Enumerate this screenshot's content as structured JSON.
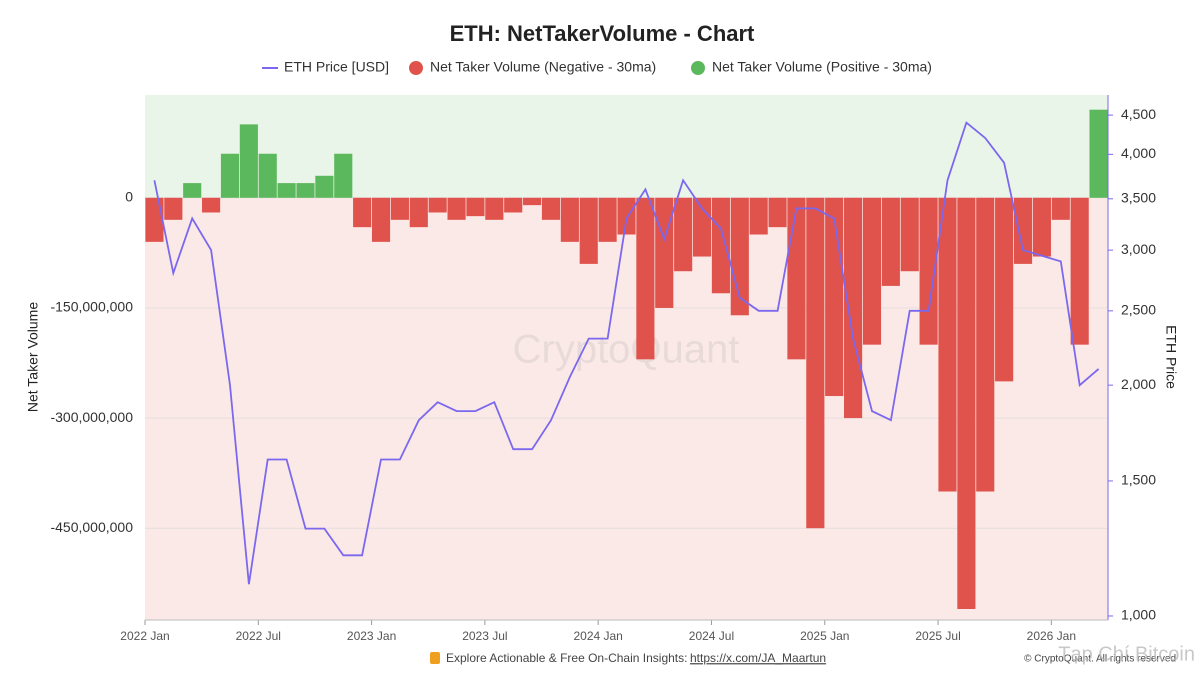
{
  "chart_data": {
    "type": "bar-line",
    "title": "ETH: NetTakerVolume - Chart",
    "y_label": "Net Taker Volume",
    "y2_label": "ETH Price",
    "watermark": "CryptoQuant",
    "footer": "Explore Actionable & Free On-Chain Insights:",
    "footer_link": "https://x.com/JA_Maartun",
    "copyright": "© CryptoQuant. All rights reserved",
    "source_watermark": "Tạp Chí Bitcoin",
    "x": [
      "2022-01",
      "2022-02",
      "2022-03",
      "2022-04",
      "2022-05",
      "2022-06",
      "2022-07",
      "2022-08",
      "2022-09",
      "2022-10",
      "2022-11",
      "2022-12",
      "2023-01",
      "2023-02",
      "2023-03",
      "2023-04",
      "2023-05",
      "2023-06",
      "2023-07",
      "2023-08",
      "2023-09",
      "2023-10",
      "2023-11",
      "2023-12",
      "2024-01",
      "2024-02",
      "2024-03",
      "2024-04",
      "2024-05",
      "2024-06",
      "2024-07",
      "2024-08",
      "2024-09",
      "2024-10",
      "2024-11",
      "2024-12",
      "2025-01",
      "2025-02",
      "2025-03",
      "2025-04",
      "2025-05",
      "2025-06",
      "2025-07",
      "2025-08",
      "2025-09",
      "2025-10",
      "2025-11",
      "2025-12",
      "2026-01",
      "2026-02",
      "2026-03"
    ],
    "xlim": [
      "2022-01",
      "2026-04"
    ],
    "xticks": [
      {
        "value": "2022-01",
        "label": "2022 Jan"
      },
      {
        "value": "2022-07",
        "label": "2022 Jul"
      },
      {
        "value": "2023-01",
        "label": "2023 Jan"
      },
      {
        "value": "2023-07",
        "label": "2023 Jul"
      },
      {
        "value": "2024-01",
        "label": "2024 Jan"
      },
      {
        "value": "2024-07",
        "label": "2024 Jul"
      },
      {
        "value": "2025-01",
        "label": "2025 Jan"
      },
      {
        "value": "2025-07",
        "label": "2025 Jul"
      },
      {
        "value": "2026-01",
        "label": "2026 Jan"
      }
    ],
    "series": [
      {
        "name": "Net Taker Volume (Negative - 30ma)",
        "color": "#e0524c",
        "values": [
          -60000000,
          -30000000,
          null,
          -20000000,
          null,
          null,
          null,
          null,
          null,
          null,
          null,
          -40000000,
          -60000000,
          -30000000,
          -40000000,
          -20000000,
          -30000000,
          -25000000,
          -30000000,
          -20000000,
          -10000000,
          -30000000,
          -60000000,
          -90000000,
          -60000000,
          -50000000,
          -220000000,
          -150000000,
          -100000000,
          -80000000,
          -130000000,
          -160000000,
          -50000000,
          -40000000,
          -220000000,
          -450000000,
          -270000000,
          -300000000,
          -200000000,
          -120000000,
          -100000000,
          -200000000,
          -400000000,
          -560000000,
          -400000000,
          -250000000,
          -90000000,
          -80000000,
          -30000000,
          -200000000,
          null
        ]
      },
      {
        "name": "Net Taker Volume (Positive - 30ma)",
        "color": "#5cb85c",
        "values": [
          null,
          null,
          20000000,
          null,
          60000000,
          100000000,
          60000000,
          20000000,
          20000000,
          30000000,
          60000000,
          null,
          null,
          null,
          null,
          null,
          null,
          null,
          null,
          null,
          null,
          null,
          null,
          null,
          null,
          null,
          null,
          null,
          null,
          null,
          null,
          null,
          null,
          null,
          null,
          null,
          null,
          null,
          null,
          null,
          null,
          null,
          null,
          null,
          null,
          null,
          null,
          null,
          null,
          null,
          120000000
        ]
      },
      {
        "name": "ETH Price [USD]",
        "color": "#7b68ee",
        "axis": "y2",
        "values": [
          3700,
          2800,
          3300,
          3000,
          2000,
          1100,
          1600,
          1600,
          1300,
          1300,
          1200,
          1200,
          1600,
          1600,
          1800,
          1900,
          1850,
          1850,
          1900,
          1650,
          1650,
          1800,
          2050,
          2300,
          2300,
          3300,
          3600,
          3100,
          3700,
          3400,
          3200,
          2600,
          2500,
          2500,
          3400,
          3400,
          3300,
          2300,
          1850,
          1800,
          2500,
          2500,
          3700,
          4400,
          4200,
          3900,
          3000,
          2950,
          2900,
          2000,
          2100
        ]
      }
    ],
    "ylim": [
      -575000000,
      140000000
    ],
    "yticks": [
      {
        "value": 0,
        "label": "0"
      },
      {
        "value": -150000000,
        "label": "-150,000,000"
      },
      {
        "value": -300000000,
        "label": "-300,000,000"
      },
      {
        "value": -450000000,
        "label": "-450,000,000"
      }
    ],
    "y2lim": [
      988,
      4780
    ],
    "y2ticks": [
      {
        "value": 1000,
        "label": "1,000"
      },
      {
        "value": 1500,
        "label": "1,500"
      },
      {
        "value": 2000,
        "label": "2,000"
      },
      {
        "value": 2500,
        "label": "2,500"
      },
      {
        "value": 3000,
        "label": "3,000"
      },
      {
        "value": 3500,
        "label": "3,500"
      },
      {
        "value": 4000,
        "label": "4,000"
      },
      {
        "value": 4500,
        "label": "4,500"
      }
    ],
    "y2_log": true,
    "grid": true
  }
}
